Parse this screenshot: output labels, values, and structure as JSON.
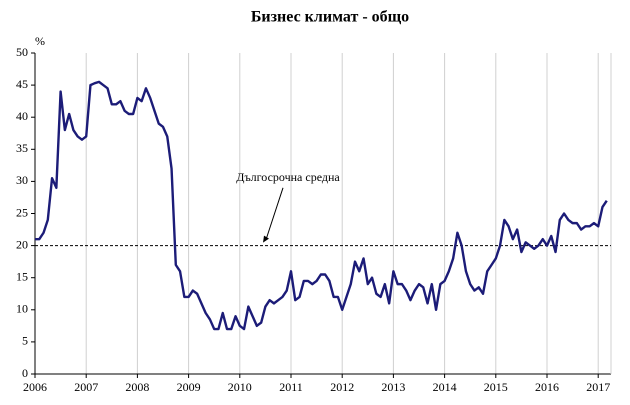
{
  "chart_data": {
    "type": "line",
    "title": "Бизнес климат - общо",
    "y_label": "%",
    "x": [
      2006,
      2006.083,
      2006.167,
      2006.25,
      2006.333,
      2006.417,
      2006.5,
      2006.583,
      2006.667,
      2006.75,
      2006.833,
      2006.917,
      2007,
      2007.083,
      2007.167,
      2007.25,
      2007.333,
      2007.417,
      2007.5,
      2007.583,
      2007.667,
      2007.75,
      2007.833,
      2007.917,
      2008,
      2008.083,
      2008.167,
      2008.25,
      2008.333,
      2008.417,
      2008.5,
      2008.583,
      2008.667,
      2008.75,
      2008.833,
      2008.917,
      2009,
      2009.083,
      2009.167,
      2009.25,
      2009.333,
      2009.417,
      2009.5,
      2009.583,
      2009.667,
      2009.75,
      2009.833,
      2009.917,
      2010,
      2010.083,
      2010.167,
      2010.25,
      2010.333,
      2010.417,
      2010.5,
      2010.583,
      2010.667,
      2010.75,
      2010.833,
      2010.917,
      2011,
      2011.083,
      2011.167,
      2011.25,
      2011.333,
      2011.417,
      2011.5,
      2011.583,
      2011.667,
      2011.75,
      2011.833,
      2011.917,
      2012,
      2012.083,
      2012.167,
      2012.25,
      2012.333,
      2012.417,
      2012.5,
      2012.583,
      2012.667,
      2012.75,
      2012.833,
      2012.917,
      2013,
      2013.083,
      2013.167,
      2013.25,
      2013.333,
      2013.417,
      2013.5,
      2013.583,
      2013.667,
      2013.75,
      2013.833,
      2013.917,
      2014,
      2014.083,
      2014.167,
      2014.25,
      2014.333,
      2014.417,
      2014.5,
      2014.583,
      2014.667,
      2014.75,
      2014.833,
      2014.917,
      2015,
      2015.083,
      2015.167,
      2015.25,
      2015.333,
      2015.417,
      2015.5,
      2015.583,
      2015.667,
      2015.75,
      2015.833,
      2015.917,
      2016,
      2016.083,
      2016.167,
      2016.25,
      2016.333,
      2016.417,
      2016.5,
      2016.583,
      2016.667,
      2016.75,
      2016.833,
      2016.917,
      2017,
      2017.083,
      2017.167
    ],
    "series": [
      {
        "color": "#1c1c78",
        "values": [
          21,
          21,
          22,
          24,
          30.5,
          29,
          44,
          38,
          40.5,
          38,
          37,
          36.5,
          37,
          45,
          45.3,
          45.5,
          45,
          44.5,
          42,
          42,
          42.5,
          41,
          40.5,
          40.5,
          43,
          42.5,
          44.5,
          43,
          41,
          39,
          38.5,
          37,
          32,
          17,
          16,
          12,
          12,
          13,
          12.5,
          11,
          9.5,
          8.5,
          7,
          7,
          9.5,
          7,
          7,
          9,
          7.5,
          7,
          10.5,
          9,
          7.5,
          8,
          10.5,
          11.5,
          11,
          11.5,
          12,
          13,
          16,
          11.5,
          12,
          14.5,
          14.5,
          14,
          14.5,
          15.5,
          15.5,
          14.5,
          12,
          12,
          10,
          12,
          14,
          17.5,
          16,
          18,
          14,
          15,
          12.5,
          12,
          14,
          11,
          16,
          14,
          14,
          13,
          11.5,
          13,
          14,
          13.5,
          11,
          14,
          10,
          14,
          14.5,
          16,
          18,
          22,
          20,
          16,
          14,
          13,
          13.5,
          12.5,
          16,
          17,
          18,
          20,
          24,
          23,
          21,
          22.5,
          19,
          20.5,
          20,
          19.5,
          20,
          21,
          20,
          21.5,
          19,
          24,
          25,
          24,
          23.5,
          23.5,
          22.5,
          23,
          23,
          23.5,
          23,
          26,
          27
        ]
      }
    ],
    "reference_line": {
      "value": 20,
      "label": "Дългосрочна средна"
    },
    "xlim": [
      2006,
      2017.25
    ],
    "xticks": [
      2006,
      2007,
      2008,
      2009,
      2010,
      2011,
      2012,
      2013,
      2014,
      2015,
      2016,
      2017
    ],
    "ylim": [
      0,
      50
    ],
    "yticks": [
      0,
      5,
      10,
      15,
      20,
      25,
      30,
      35,
      40,
      45,
      50
    ],
    "grid": true
  }
}
